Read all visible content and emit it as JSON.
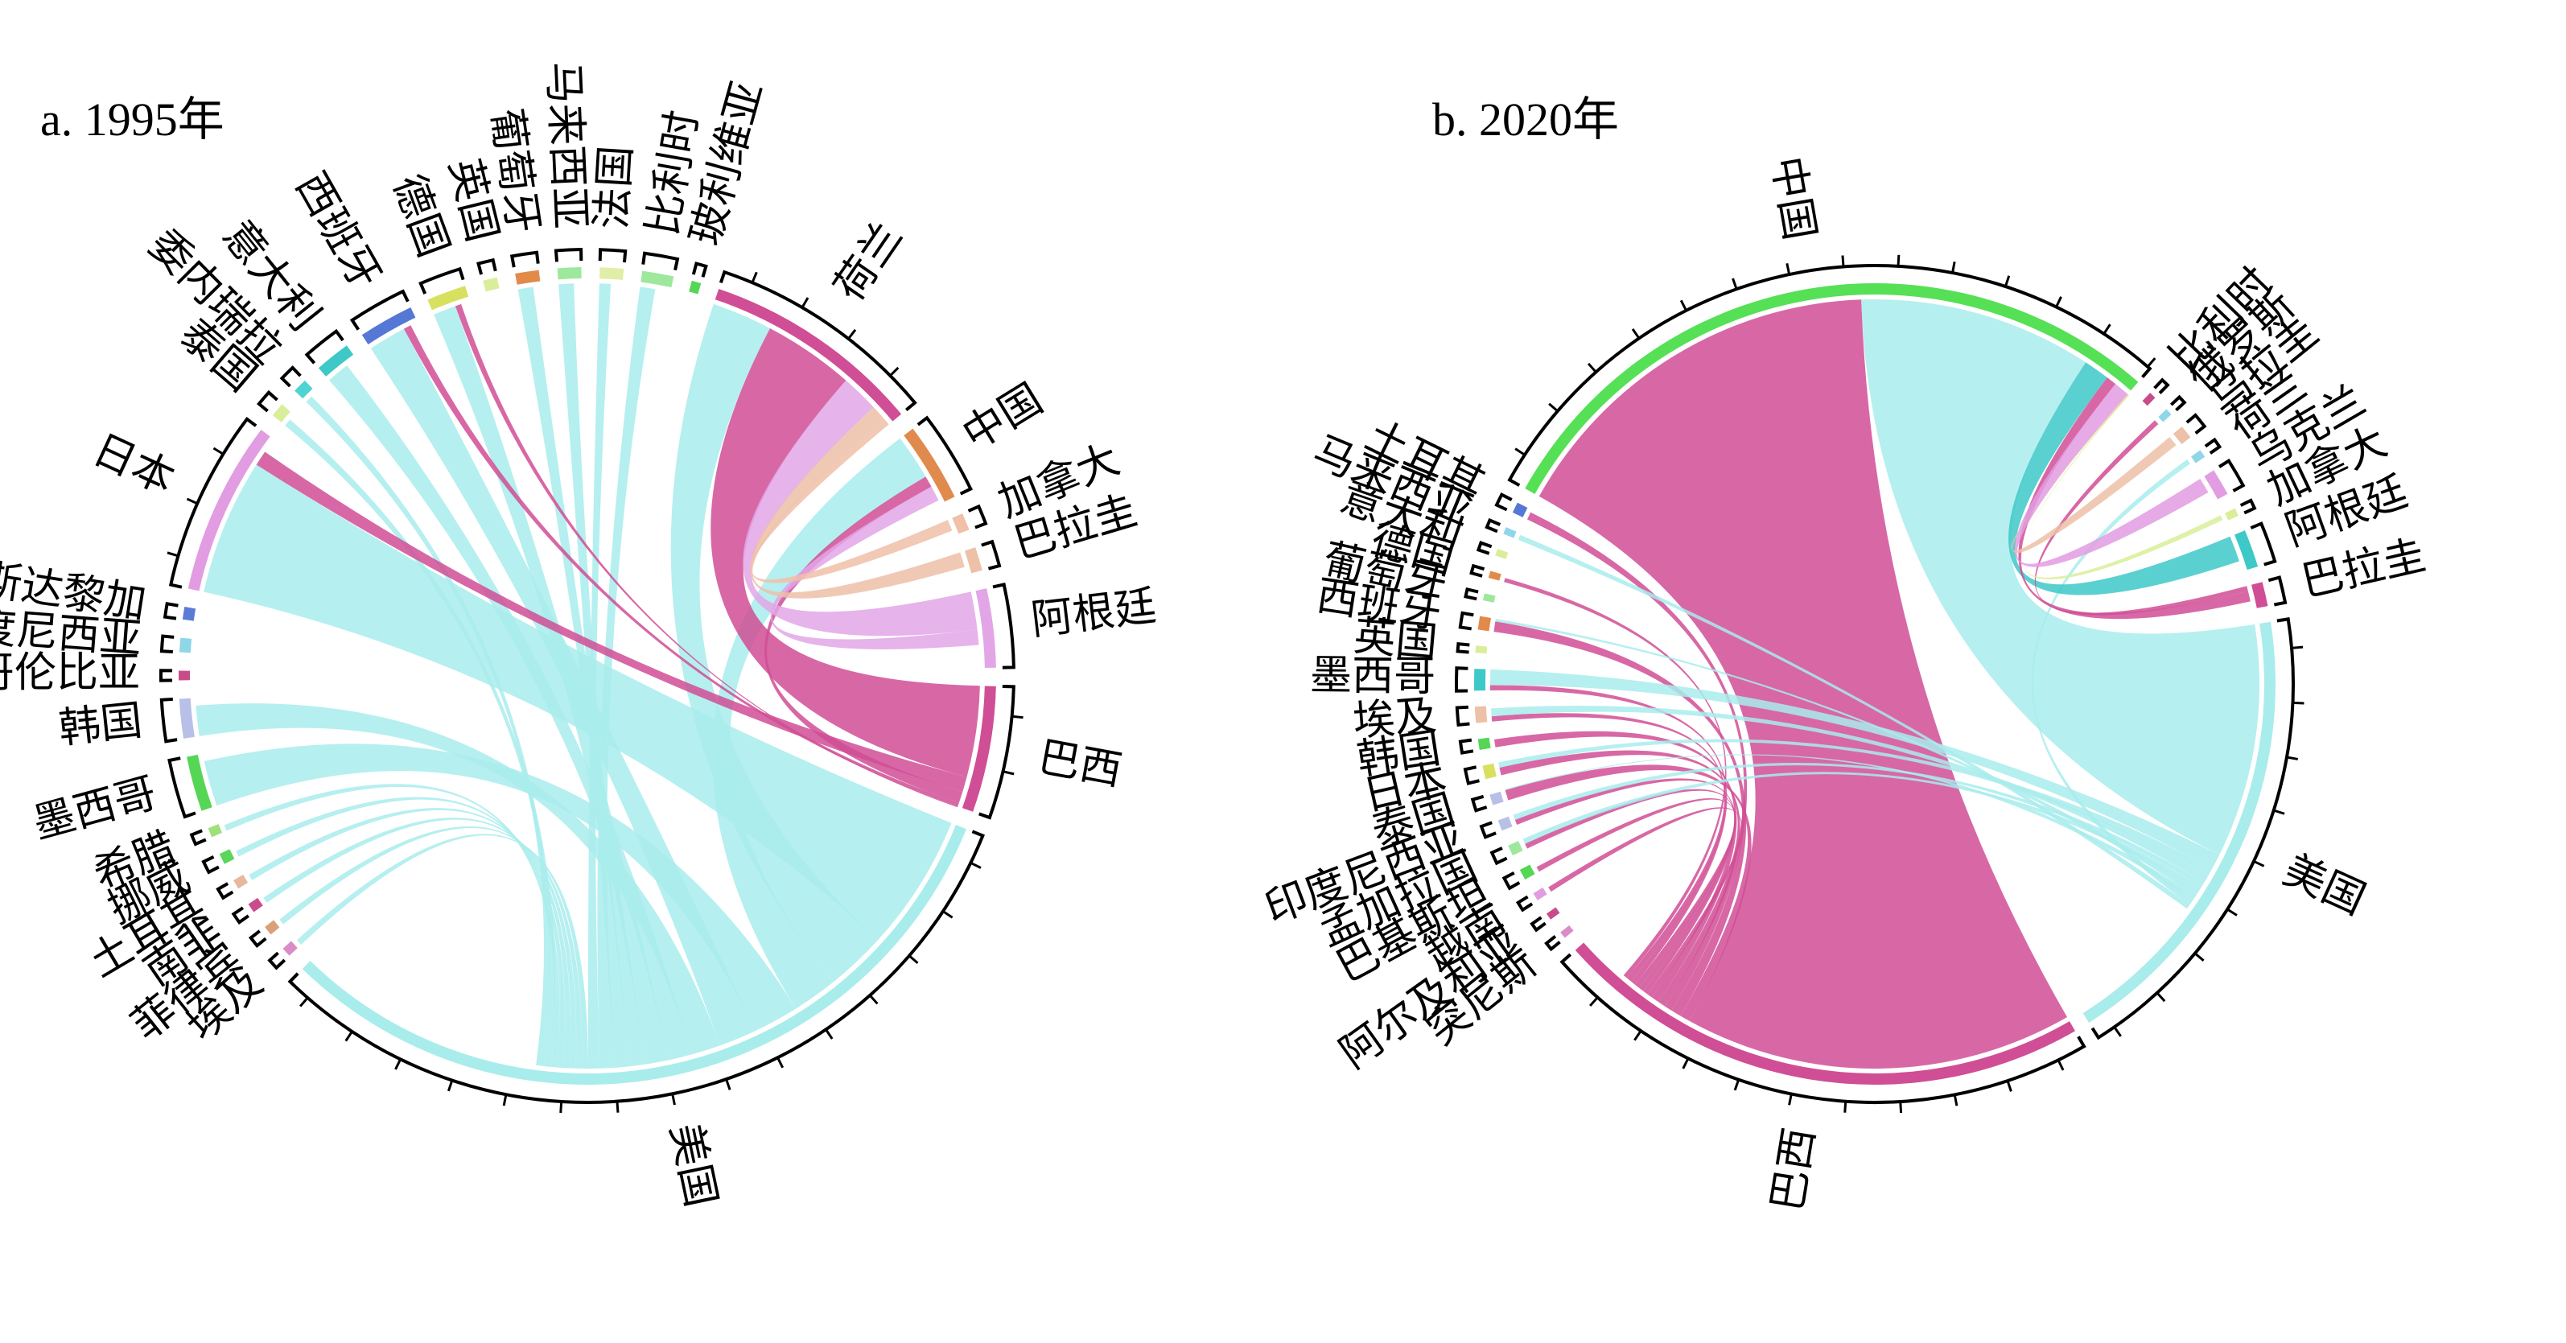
{
  "chart_data": [
    {
      "type": "chord",
      "panel_title": "a. 1995年",
      "segments": [
        {
          "name": "美国",
          "value": 100,
          "color": "#a9ecec",
          "kind": "source"
        },
        {
          "name": "埃及",
          "value": 1.2,
          "color": "#d98cc8",
          "kind": "target"
        },
        {
          "name": "菲律宾",
          "value": 1.2,
          "color": "#d9a07a",
          "kind": "target"
        },
        {
          "name": "南非",
          "value": 1.2,
          "color": "#c94c8a",
          "kind": "target"
        },
        {
          "name": "土耳其",
          "value": 1.2,
          "color": "#e8b89e",
          "kind": "target"
        },
        {
          "name": "挪威",
          "value": 1.4,
          "color": "#5ad65a",
          "kind": "target"
        },
        {
          "name": "希腊",
          "value": 1.2,
          "color": "#9ee07a",
          "kind": "target"
        },
        {
          "name": "墨西哥",
          "value": 7,
          "color": "#55d655",
          "kind": "target"
        },
        {
          "name": "韩国",
          "value": 5,
          "color": "#b8c0e8",
          "kind": "target"
        },
        {
          "name": "哥伦比亚",
          "value": 1.2,
          "color": "#c94c8a",
          "kind": "target"
        },
        {
          "name": "印度尼西亚",
          "value": 1.8,
          "color": "#8fd6e8",
          "kind": "target"
        },
        {
          "name": "哥斯达黎加",
          "value": 1.6,
          "color": "#5b7bd6",
          "kind": "target"
        },
        {
          "name": "日本",
          "value": 22,
          "color": "#e29ce2",
          "kind": "target"
        },
        {
          "name": "泰国",
          "value": 1.8,
          "color": "#d9ee9a",
          "kind": "target"
        },
        {
          "name": "委内瑞拉",
          "value": 1.8,
          "color": "#4fd3d3",
          "kind": "target"
        },
        {
          "name": "意大利",
          "value": 4.5,
          "color": "#3ec8c8",
          "kind": "target"
        },
        {
          "name": "西班牙",
          "value": 7,
          "color": "#5577d6",
          "kind": "target"
        },
        {
          "name": "德国",
          "value": 5,
          "color": "#d8e060",
          "kind": "target"
        },
        {
          "name": "英国",
          "value": 1.8,
          "color": "#d9ee9a",
          "kind": "target"
        },
        {
          "name": "葡萄牙",
          "value": 3,
          "color": "#e28a4a",
          "kind": "target"
        },
        {
          "name": "马来西亚",
          "value": 3,
          "color": "#9ee89e",
          "kind": "target"
        },
        {
          "name": "法国",
          "value": 3,
          "color": "#e0eea8",
          "kind": "target"
        },
        {
          "name": "比利时",
          "value": 4,
          "color": "#9ee89e",
          "kind": "target"
        },
        {
          "name": "玻利维亚",
          "value": 1.2,
          "color": "#55d655",
          "kind": "target"
        },
        {
          "name": "荷兰",
          "value": 28,
          "color": "#d04e95",
          "kind": "target"
        },
        {
          "name": "中国",
          "value": 10,
          "color": "#e08a4e",
          "kind": "target"
        },
        {
          "name": "加拿大",
          "value": 2.2,
          "color": "#f0c0a8",
          "kind": "source"
        },
        {
          "name": "巴拉圭",
          "value": 3,
          "color": "#edc0a8",
          "kind": "source"
        },
        {
          "name": "阿根廷",
          "value": 10,
          "color": "#e2a6e6",
          "kind": "source"
        },
        {
          "name": "巴西",
          "value": 16,
          "color": "#d04e95",
          "kind": "source"
        }
      ],
      "flows": [
        {
          "from": "美国",
          "to": "日本",
          "value": 18
        },
        {
          "from": "美国",
          "to": "荷兰",
          "value": 8
        },
        {
          "from": "美国",
          "to": "中国",
          "value": 6
        },
        {
          "from": "美国",
          "to": "墨西哥",
          "value": 6
        },
        {
          "from": "美国",
          "to": "西班牙",
          "value": 5
        },
        {
          "from": "美国",
          "to": "韩国",
          "value": 4
        },
        {
          "from": "美国",
          "to": "意大利",
          "value": 3
        },
        {
          "from": "美国",
          "to": "德国",
          "value": 3
        },
        {
          "from": "美国",
          "to": "葡萄牙",
          "value": 2
        },
        {
          "from": "美国",
          "to": "马来西亚",
          "value": 2
        },
        {
          "from": "美国",
          "to": "比利时",
          "value": 2
        },
        {
          "from": "美国",
          "to": "法国",
          "value": 1.5
        },
        {
          "from": "美国",
          "to": "埃及",
          "value": 0.8
        },
        {
          "from": "美国",
          "to": "菲律宾",
          "value": 0.8
        },
        {
          "from": "美国",
          "to": "南非",
          "value": 0.8
        },
        {
          "from": "美国",
          "to": "土耳其",
          "value": 0.8
        },
        {
          "from": "美国",
          "to": "挪威",
          "value": 0.8
        },
        {
          "from": "美国",
          "to": "希腊",
          "value": 0.8
        },
        {
          "from": "美国",
          "to": "泰国",
          "value": 1
        },
        {
          "from": "美国",
          "to": "委内瑞拉",
          "value": 1
        },
        {
          "from": "巴西",
          "to": "荷兰",
          "value": 12
        },
        {
          "from": "巴西",
          "to": "日本",
          "value": 2
        },
        {
          "from": "巴西",
          "to": "中国",
          "value": 1.5
        },
        {
          "from": "巴西",
          "to": "西班牙",
          "value": 1
        },
        {
          "from": "巴西",
          "to": "德国",
          "value": 0.8
        },
        {
          "from": "阿根廷",
          "to": "荷兰",
          "value": 5
        },
        {
          "from": "阿根廷",
          "to": "中国",
          "value": 2
        },
        {
          "from": "巴拉圭",
          "to": "荷兰",
          "value": 2
        },
        {
          "from": "加拿大",
          "to": "荷兰",
          "value": 1.5
        }
      ]
    },
    {
      "type": "chord",
      "panel_title": "b. 2020年",
      "segments": [
        {
          "name": "巴西",
          "value": 100,
          "color": "#d04e95",
          "kind": "source"
        },
        {
          "name": "突尼斯",
          "value": 1.3,
          "color": "#d98cc8",
          "kind": "target"
        },
        {
          "name": "阿尔及利亚",
          "value": 1.3,
          "color": "#c94c8a",
          "kind": "target"
        },
        {
          "name": "越南",
          "value": 1.5,
          "color": "#e29ce2",
          "kind": "target"
        },
        {
          "name": "巴基斯坦",
          "value": 2,
          "color": "#55d655",
          "kind": "target"
        },
        {
          "name": "孟加拉国",
          "value": 2,
          "color": "#9ee89e",
          "kind": "target"
        },
        {
          "name": "印度尼西亚",
          "value": 2,
          "color": "#b8c0e8",
          "kind": "target"
        },
        {
          "name": "泰国",
          "value": 2,
          "color": "#b8c0e8",
          "kind": "target"
        },
        {
          "name": "日本",
          "value": 2.5,
          "color": "#d8e060",
          "kind": "target"
        },
        {
          "name": "韩国",
          "value": 2,
          "color": "#55d655",
          "kind": "target"
        },
        {
          "name": "埃及",
          "value": 3,
          "color": "#edc0a8",
          "kind": "target"
        },
        {
          "name": "墨西哥",
          "value": 4,
          "color": "#3ec8c8",
          "kind": "target"
        },
        {
          "name": "英国",
          "value": 1.3,
          "color": "#d9ee9a",
          "kind": "target"
        },
        {
          "name": "西班牙",
          "value": 2.5,
          "color": "#e28a4a",
          "kind": "target"
        },
        {
          "name": "葡萄牙",
          "value": 1.3,
          "color": "#9ee89e",
          "kind": "target"
        },
        {
          "name": "德国",
          "value": 1.3,
          "color": "#e28a4a",
          "kind": "target"
        },
        {
          "name": "意大利",
          "value": 1.3,
          "color": "#d9ee9a",
          "kind": "target"
        },
        {
          "name": "马来西亚",
          "value": 1.3,
          "color": "#8fd6e8",
          "kind": "target"
        },
        {
          "name": "土耳其",
          "value": 2,
          "color": "#5577d6",
          "kind": "target"
        },
        {
          "name": "中国",
          "value": 130,
          "color": "#55e055",
          "kind": "target"
        },
        {
          "name": "比利时",
          "value": 1.3,
          "color": "#c94c8a",
          "kind": "target"
        },
        {
          "name": "俄罗斯",
          "value": 1.3,
          "color": "#8fd6e8",
          "kind": "target"
        },
        {
          "name": "乌拉圭",
          "value": 2.5,
          "color": "#edc0a8",
          "kind": "source"
        },
        {
          "name": "荷兰",
          "value": 1.5,
          "color": "#8fd6e8",
          "kind": "target"
        },
        {
          "name": "乌克兰",
          "value": 5,
          "color": "#e29ce2",
          "kind": "source"
        },
        {
          "name": "加拿大",
          "value": 1.5,
          "color": "#d9ee9a",
          "kind": "source"
        },
        {
          "name": "阿根廷",
          "value": 7,
          "color": "#3ec8c8",
          "kind": "source"
        },
        {
          "name": "巴拉圭",
          "value": 4.5,
          "color": "#d04e95",
          "kind": "source"
        },
        {
          "name": "美国",
          "value": 85,
          "color": "#a9ecec",
          "kind": "source"
        }
      ],
      "flows": [
        {
          "from": "巴西",
          "to": "中国",
          "value": 75
        },
        {
          "from": "巴西",
          "to": "泰国",
          "value": 2
        },
        {
          "from": "巴西",
          "to": "西班牙",
          "value": 2
        },
        {
          "from": "巴西",
          "to": "土耳其",
          "value": 1.5
        },
        {
          "from": "巴西",
          "to": "日本",
          "value": 1.5
        },
        {
          "from": "巴西",
          "to": "韩国",
          "value": 1.5
        },
        {
          "from": "巴西",
          "to": "越南",
          "value": 1
        },
        {
          "from": "巴西",
          "to": "印度尼西亚",
          "value": 1
        },
        {
          "from": "巴西",
          "to": "孟加拉国",
          "value": 1
        },
        {
          "from": "巴西",
          "to": "巴基斯坦",
          "value": 1
        },
        {
          "from": "巴西",
          "to": "墨西哥",
          "value": 1
        },
        {
          "from": "巴西",
          "to": "埃及",
          "value": 1
        },
        {
          "from": "巴西",
          "to": "德国",
          "value": 0.8
        },
        {
          "from": "美国",
          "to": "中国",
          "value": 45
        },
        {
          "from": "美国",
          "to": "墨西哥",
          "value": 3
        },
        {
          "from": "美国",
          "to": "日本",
          "value": 1.5
        },
        {
          "from": "美国",
          "to": "埃及",
          "value": 1.5
        },
        {
          "from": "美国",
          "to": "印度尼西亚",
          "value": 1
        },
        {
          "from": "美国",
          "to": "孟加拉国",
          "value": 1
        },
        {
          "from": "美国",
          "to": "西班牙",
          "value": 1
        },
        {
          "from": "美国",
          "to": "泰国",
          "value": 1
        },
        {
          "from": "美国",
          "to": "荷兰",
          "value": 1
        },
        {
          "from": "美国",
          "to": "马来西亚",
          "value": 1
        },
        {
          "from": "阿根廷",
          "to": "中国",
          "value": 5
        },
        {
          "from": "巴拉圭",
          "to": "俄罗斯",
          "value": 1
        },
        {
          "from": "巴拉圭",
          "to": "中国",
          "value": 2
        },
        {
          "from": "乌克兰",
          "to": "中国",
          "value": 3
        },
        {
          "from": "乌拉圭",
          "to": "中国",
          "value": 2
        },
        {
          "from": "加拿大",
          "to": "中国",
          "value": 1
        }
      ]
    }
  ]
}
